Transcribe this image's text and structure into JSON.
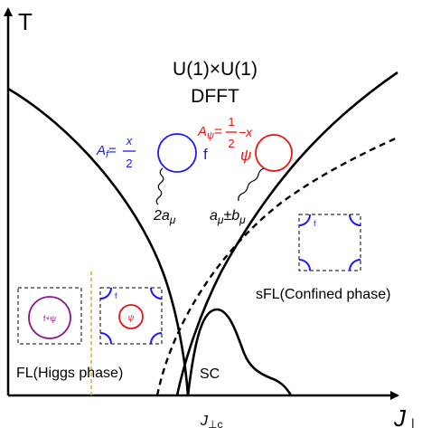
{
  "axes": {
    "y_label": "T",
    "x_label": "J",
    "x_label_sub": "⊥",
    "critical_label": "J",
    "critical_sub": "⊥c"
  },
  "regions": {
    "theory_line1": "U(1)×U(1)",
    "theory_line2": "DFFT",
    "confined": "sFL(Confined phase)",
    "higgs": "FL(Higgs phase)",
    "sc": "SC"
  },
  "f_field": {
    "A_label": "A",
    "A_sub": "f",
    "A_eq": "=",
    "frac_num": "x",
    "frac_den": "2",
    "loop_label": "f",
    "gauge_coef": "2a",
    "gauge_sub": "μ"
  },
  "psi_field": {
    "A_label": "A",
    "A_sub": "ψ",
    "A_eq": "=",
    "frac_num": "1",
    "frac_den": "2",
    "minus_x": "−x",
    "loop_label": "ψ",
    "gauge_a": "a",
    "gauge_a_sub": "μ",
    "gauge_pm": "±b",
    "gauge_b_sub": "μ"
  },
  "insets": {
    "higgs_fpsi": "f+ψ",
    "higgs_f": "f",
    "higgs_psi": "ψ",
    "confined_f": "f"
  },
  "colors": {
    "f": "#1a1aff",
    "psi": "#ee1111",
    "combined": "#8a1a8a",
    "divider": "#e8a040",
    "lines": "#000000"
  }
}
